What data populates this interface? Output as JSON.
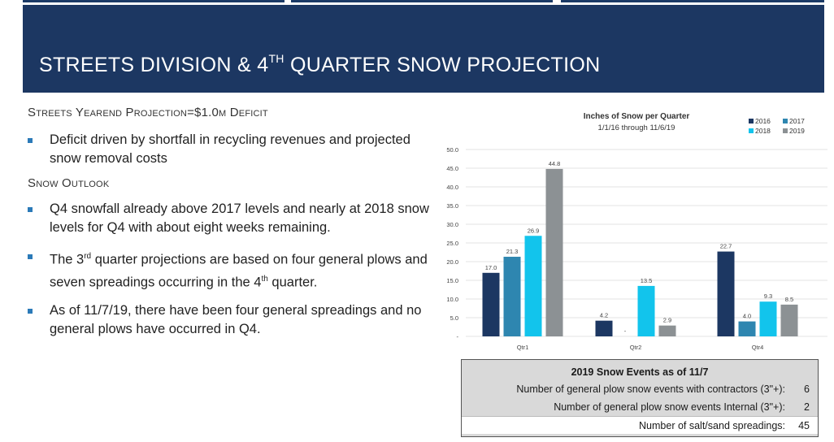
{
  "slide": {
    "title_pre": "STREETS DIVISION & 4",
    "title_sup": "TH",
    "title_post": " QUARTER SNOW PROJECTION"
  },
  "left": {
    "heading1": "Streets Yearend Projection=$1.0m Deficit",
    "bullet1": "Deficit driven by shortfall in recycling revenues and projected snow removal costs",
    "heading2": "Snow Outlook",
    "bullet2": "Q4 snowfall already above 2017 levels and nearly at 2018 snow levels for Q4 with about eight weeks remaining.",
    "bullet3_a": "The 3",
    "bullet3_sup1": "rd",
    "bullet3_b": " quarter projections are based on four general plows and seven spreadings occurring in the 4",
    "bullet3_sup2": "th",
    "bullet3_c": " quarter.",
    "bullet4": "As of 11/7/19, there have been four general spreadings and no general plows have occurred in Q4."
  },
  "chart_data": {
    "type": "bar",
    "title": "Inches of Snow per Quarter",
    "subtitle": "1/1/16 through 11/6/19",
    "categories": [
      "Qtr1",
      "Qtr2",
      "Qtr4"
    ],
    "series": [
      {
        "name": "2016",
        "color": "#1c3762",
        "values": [
          17.0,
          4.2,
          22.7
        ],
        "labels": [
          "17.0",
          "4.2",
          "22.7"
        ]
      },
      {
        "name": "2017",
        "color": "#2e86b0",
        "values": [
          21.3,
          0,
          4.0
        ],
        "labels": [
          "21.3",
          "-",
          "4.0"
        ]
      },
      {
        "name": "2018",
        "color": "#12c4ec",
        "values": [
          26.9,
          13.5,
          9.3
        ],
        "labels": [
          "26.9",
          "13.5",
          "9.3"
        ]
      },
      {
        "name": "2019",
        "color": "#8c9194",
        "values": [
          44.8,
          2.9,
          8.5
        ],
        "labels": [
          "44.8",
          "2.9",
          "8.5"
        ]
      }
    ],
    "ylim": [
      0,
      50
    ],
    "yticks": [
      "-",
      "5.0",
      "10.0",
      "15.0",
      "20.0",
      "25.0",
      "30.0",
      "35.0",
      "40.0",
      "45.0",
      "50.0"
    ],
    "legend": "top-right",
    "grid": true
  },
  "table": {
    "title": "2019 Snow Events as of 11/7",
    "rows": [
      {
        "label": "Number of general plow snow events with contractors (3\"+):",
        "value": "6"
      },
      {
        "label": "Number of general plow snow events Internal (3\"+):",
        "value": "2"
      },
      {
        "label": "Number of salt/sand spreadings:",
        "value": "45"
      }
    ]
  }
}
